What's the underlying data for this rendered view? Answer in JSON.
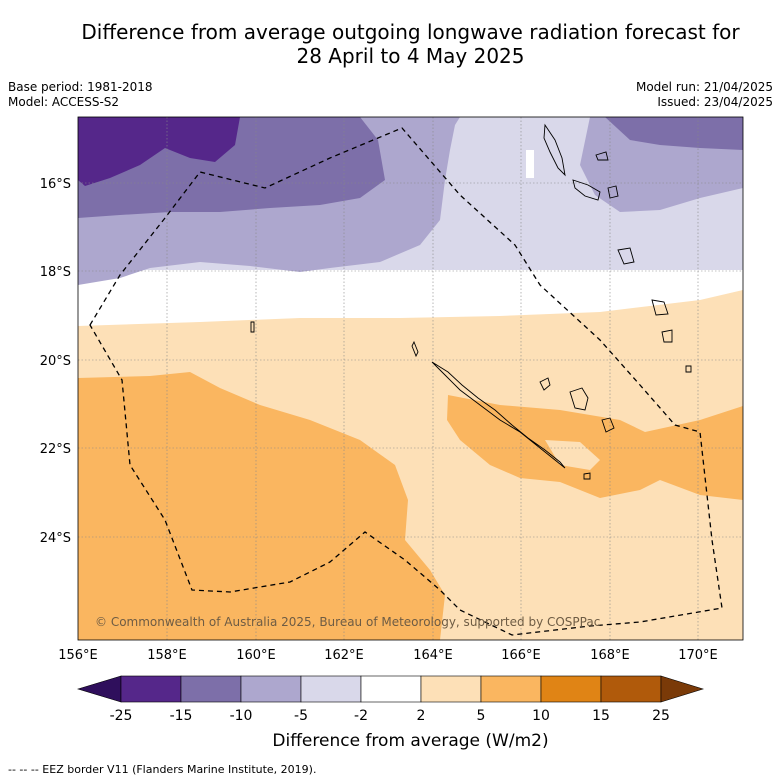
{
  "title_line1": "Difference from average outgoing longwave radiation forecast for",
  "title_line2": "28 April to 4 May 2025",
  "base_period": "Base period: 1981-2018",
  "model": "Model: ACCESS-S2",
  "model_run": "Model run: 21/04/2025",
  "issued": "Issued: 23/04/2025",
  "copyright": "© Commonwealth of Australia 2025, Bureau of Meteorology, supported by COSPPac",
  "lon_ticks": [
    "156°E",
    "158°E",
    "160°E",
    "162°E",
    "164°E",
    "166°E",
    "168°E",
    "170°E"
  ],
  "lat_ticks": [
    "16°S",
    "18°S",
    "20°S",
    "22°S",
    "24°S"
  ],
  "colorbar": {
    "ticks": [
      "-25",
      "-15",
      "-10",
      "-5",
      "-2",
      "2",
      "5",
      "10",
      "15",
      "25"
    ],
    "label": "Difference from average (W/m2)",
    "colors": [
      "#2f0f5c",
      "#55278a",
      "#7d6fa9",
      "#ada7ce",
      "#d9d8ea",
      "#ffffff",
      "#fde0b7",
      "#fab660",
      "#e08415",
      "#b05a0b",
      "#7a3a08"
    ]
  },
  "footnote": "--  --  -- EEZ border V11 (Flanders Marine Institute, 2019)."
}
